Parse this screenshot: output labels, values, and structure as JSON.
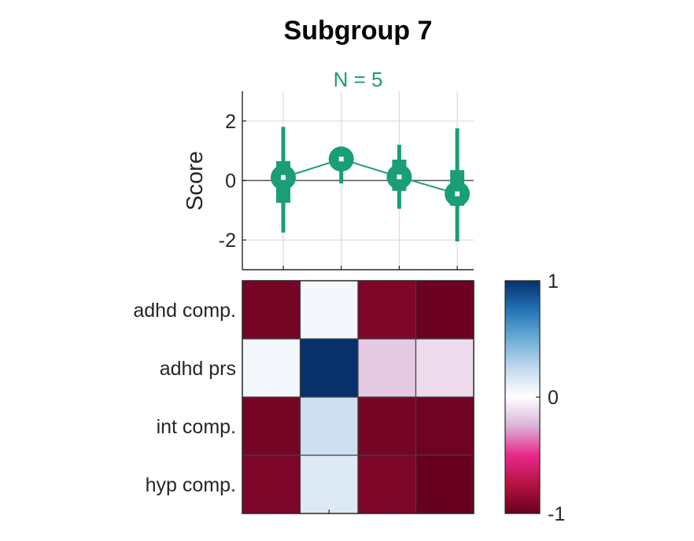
{
  "colors": {
    "series": "#1a9e77",
    "axis": "#262626",
    "grid": "#dcdcdc",
    "zero_line": "#555555",
    "cell_border": "#404040"
  },
  "chart_data": [
    {
      "type": "line",
      "title": "Subgroup 7",
      "subtitle": "N = 5",
      "ylabel": "Score",
      "ylim": [
        -3,
        3
      ],
      "yticks": [
        -2,
        0,
        2
      ],
      "x": [
        1,
        2,
        3,
        4
      ],
      "grid": true,
      "series": [
        {
          "values": [
            0.1,
            0.72,
            0.12,
            -0.45
          ],
          "box_low": [
            -0.75,
            0.45,
            -0.35,
            -0.85
          ],
          "box_high": [
            0.65,
            0.9,
            0.7,
            0.35
          ],
          "whisker_low": [
            -1.75,
            -0.1,
            -0.95,
            -2.05
          ],
          "whisker_high": [
            1.8,
            0.95,
            1.2,
            1.75
          ]
        }
      ]
    },
    {
      "type": "heatmap",
      "rows": [
        "adhd comp.",
        "adhd prs",
        "int comp.",
        "hyp comp."
      ],
      "columns": 4,
      "values": [
        [
          -0.95,
          0.05,
          -0.92,
          -0.98
        ],
        [
          0.05,
          1.0,
          -0.18,
          -0.12
        ],
        [
          -0.95,
          0.22,
          -0.95,
          -0.97
        ],
        [
          -0.93,
          0.15,
          -0.93,
          -1.0
        ]
      ],
      "colorbar": {
        "range": [
          -1,
          1
        ],
        "ticks": [
          1,
          0,
          -1
        ]
      }
    }
  ]
}
